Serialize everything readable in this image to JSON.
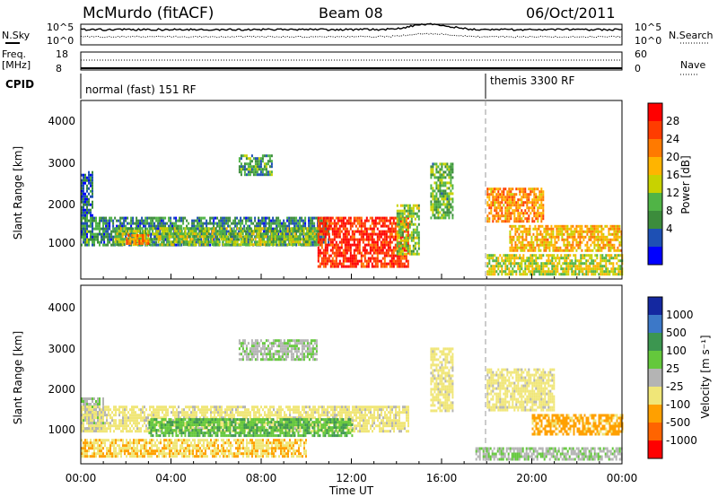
{
  "header": {
    "title": "McMurdo (fitACF)",
    "beam": "Beam 08",
    "date": "06/Oct/2011"
  },
  "top_strip": {
    "nsky_label": "N.Sky",
    "nsearch_label": "N.Search",
    "nsky_ticks": [
      "10^5",
      "10^0"
    ],
    "nsearch_ticks": [
      "10^5",
      "10^0"
    ],
    "freq_label": "Freq.",
    "freq_unit": "[MHz]",
    "freq_ticks": [
      "18",
      "8"
    ],
    "nave_label": "Nave",
    "nave_ticks": [
      "60",
      "0"
    ],
    "cpid_label": "CPID",
    "cpid_modes": [
      {
        "label": "normal (fast) 151 RF",
        "start_hour": 0
      },
      {
        "label": "themis 3300 RF",
        "start_hour": 18
      }
    ]
  },
  "panel_power": {
    "ylabel": "Slant Range [km]",
    "yticks": [
      "4000",
      "3000",
      "2000",
      "1000"
    ],
    "colorbar_label": "Power [dB]",
    "colorbar_ticks": [
      "28",
      "24",
      "20",
      "16",
      "12",
      "8",
      "4"
    ],
    "colorbar_colors": [
      "#ff0000",
      "#ff3c00",
      "#ff7a00",
      "#ffb400",
      "#c8d200",
      "#50b446",
      "#3c8c3c",
      "#1e50b4",
      "#0000ff"
    ]
  },
  "panel_velocity": {
    "ylabel": "Slant Range [km]",
    "yticks": [
      "4000",
      "3000",
      "2000",
      "1000"
    ],
    "colorbar_label": "Velocity [m s⁻¹]",
    "colorbar_ticks": [
      "1000",
      "500",
      "100",
      "25",
      "-25",
      "-100",
      "-500",
      "-1000"
    ],
    "colorbar_colors": [
      "#1428a0",
      "#3c78c8",
      "#3c9650",
      "#64c83c",
      "#b4b4b4",
      "#f0e678",
      "#ffa000",
      "#ff6400",
      "#ff0000"
    ]
  },
  "x_axis": {
    "ticks": [
      "00:00",
      "04:00",
      "08:00",
      "12:00",
      "16:00",
      "20:00",
      "00:00"
    ],
    "label": "Time UT"
  },
  "chart_data": {
    "type": "heatmap",
    "title": "McMurdo (fitACF)",
    "xlabel": "Time UT",
    "ylabel": "Slant Range [km]",
    "xlim": [
      0,
      24
    ],
    "ylim": [
      200,
      4500
    ],
    "power_clim": [
      0,
      32
    ],
    "velocity_clim": [
      -1000,
      1000
    ],
    "power_regions": [
      {
        "t0": 0.0,
        "t1": 0.5,
        "r0": 1200,
        "r1": 2800,
        "value": 6
      },
      {
        "t0": 0.0,
        "t1": 1.0,
        "r0": 1000,
        "r1": 1700,
        "value": 10
      },
      {
        "t0": 1.0,
        "t1": 11.0,
        "r0": 1050,
        "r1": 1700,
        "value": 8
      },
      {
        "t0": 1.5,
        "t1": 10.5,
        "r0": 1000,
        "r1": 1450,
        "value": 14
      },
      {
        "t0": 2.0,
        "t1": 3.0,
        "r0": 1080,
        "r1": 1280,
        "value": 22
      },
      {
        "t0": 7.0,
        "t1": 8.5,
        "r0": 2700,
        "r1": 3200,
        "value": 10
      },
      {
        "t0": 10.5,
        "t1": 14.5,
        "r0": 500,
        "r1": 1700,
        "value": 28
      },
      {
        "t0": 14.0,
        "t1": 15.0,
        "r0": 800,
        "r1": 2000,
        "value": 14
      },
      {
        "t0": 15.5,
        "t1": 16.5,
        "r0": 1700,
        "r1": 3000,
        "value": 12
      },
      {
        "t0": 18.0,
        "t1": 20.5,
        "r0": 1600,
        "r1": 2400,
        "value": 22
      },
      {
        "t0": 19.0,
        "t1": 24.0,
        "r0": 900,
        "r1": 1500,
        "value": 20
      },
      {
        "t0": 18.0,
        "t1": 24.0,
        "r0": 300,
        "r1": 800,
        "value": 16
      }
    ],
    "velocity_regions": [
      {
        "t0": 0.0,
        "t1": 1.0,
        "r0": 1000,
        "r1": 1800,
        "value": 50
      },
      {
        "t0": 0.0,
        "t1": 14.5,
        "r0": 1000,
        "r1": 1600,
        "value": -200
      },
      {
        "t0": 3.0,
        "t1": 12.0,
        "r0": 900,
        "r1": 1300,
        "value": 300
      },
      {
        "t0": 0.0,
        "t1": 10.0,
        "r0": 400,
        "r1": 800,
        "value": -300
      },
      {
        "t0": 7.0,
        "t1": 10.5,
        "r0": 2700,
        "r1": 3200,
        "value": 80
      },
      {
        "t0": 15.5,
        "t1": 16.5,
        "r0": 1500,
        "r1": 3000,
        "value": -200
      },
      {
        "t0": 18.0,
        "t1": 21.0,
        "r0": 1500,
        "r1": 2500,
        "value": -200
      },
      {
        "t0": 20.0,
        "t1": 24.0,
        "r0": 900,
        "r1": 1400,
        "value": -400
      },
      {
        "t0": 17.5,
        "t1": 24.0,
        "r0": 300,
        "r1": 600,
        "value": 80
      }
    ]
  }
}
